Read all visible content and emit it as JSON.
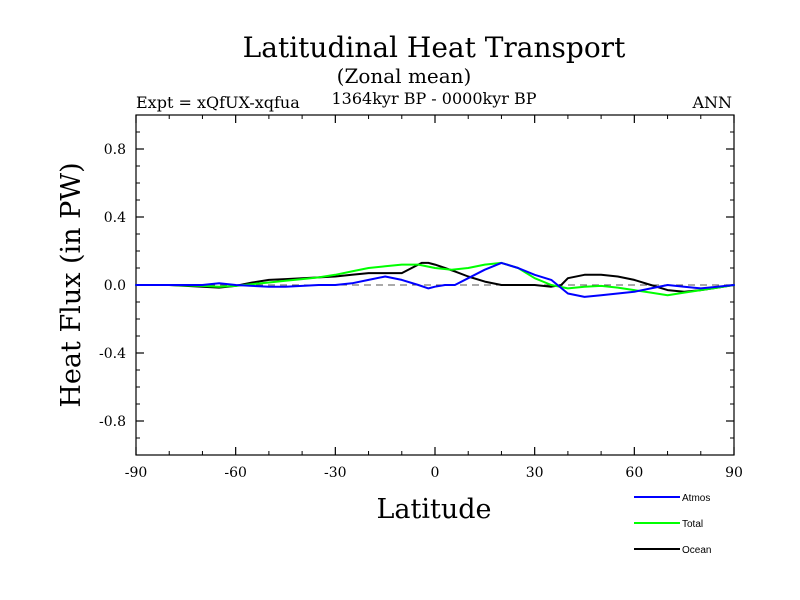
{
  "chart_data": {
    "type": "line",
    "title": "Latitudinal Heat Transport",
    "subtitle": "(Zonal mean)",
    "left_label": "Expt = xQfUX-xqfua",
    "center_label": "1364kyr BP - 0000kyr BP",
    "right_label": "ANN",
    "xlabel": "Latitude",
    "ylabel": "Heat Flux (in PW)",
    "xlim": [
      -90,
      90
    ],
    "ylim": [
      -1.0,
      1.0
    ],
    "xticks": [
      -90,
      -60,
      -30,
      0,
      30,
      60,
      90
    ],
    "xtick_labels": [
      "-90",
      "-60",
      "-30",
      "0",
      "30",
      "60",
      "90"
    ],
    "yticks": [
      -0.8,
      -0.4,
      0.0,
      0.4,
      0.8
    ],
    "ytick_labels": [
      "-0.8",
      "-0.4",
      "0.0",
      "0.4",
      "0.8"
    ],
    "zero_line": "dashed",
    "legend_position": "bottom-right, below plot",
    "series": [
      {
        "name": "Atmos",
        "color": "#0000ff",
        "x": [
          -90,
          -80,
          -70,
          -65,
          -60,
          -55,
          -50,
          -45,
          -40,
          -35,
          -30,
          -25,
          -20,
          -15,
          -10,
          -5,
          -2,
          0,
          3,
          6,
          10,
          15,
          20,
          25,
          30,
          35,
          40,
          45,
          50,
          55,
          60,
          65,
          70,
          75,
          80,
          85,
          90
        ],
        "y": [
          0.0,
          0.0,
          0.0,
          0.01,
          0.0,
          -0.005,
          -0.01,
          -0.01,
          -0.005,
          0.0,
          0.0,
          0.01,
          0.03,
          0.05,
          0.03,
          0.0,
          -0.02,
          -0.01,
          0.0,
          0.0,
          0.04,
          0.09,
          0.13,
          0.1,
          0.06,
          0.03,
          -0.05,
          -0.07,
          -0.06,
          -0.05,
          -0.04,
          -0.02,
          0.0,
          -0.01,
          -0.02,
          -0.01,
          0.0
        ]
      },
      {
        "name": "Total",
        "color": "#00ff00",
        "x": [
          -90,
          -80,
          -70,
          -65,
          -60,
          -55,
          -50,
          -45,
          -40,
          -35,
          -30,
          -25,
          -20,
          -15,
          -10,
          -5,
          0,
          5,
          10,
          15,
          20,
          25,
          30,
          35,
          40,
          45,
          50,
          55,
          60,
          65,
          70,
          75,
          80,
          85,
          90
        ],
        "y": [
          0.0,
          0.0,
          -0.005,
          -0.01,
          -0.005,
          0.005,
          0.015,
          0.025,
          0.035,
          0.045,
          0.06,
          0.08,
          0.1,
          0.11,
          0.12,
          0.12,
          0.1,
          0.09,
          0.1,
          0.12,
          0.13,
          0.1,
          0.04,
          0.0,
          -0.02,
          -0.01,
          -0.005,
          -0.015,
          -0.03,
          -0.045,
          -0.06,
          -0.045,
          -0.03,
          -0.015,
          0.0
        ]
      },
      {
        "name": "Ocean",
        "color": "#000000",
        "x": [
          -90,
          -80,
          -70,
          -65,
          -60,
          -55,
          -50,
          -45,
          -40,
          -35,
          -30,
          -25,
          -20,
          -15,
          -10,
          -7,
          -4,
          -2,
          0,
          3,
          6,
          10,
          15,
          20,
          25,
          30,
          35,
          38,
          40,
          45,
          50,
          55,
          60,
          65,
          70,
          75,
          80,
          85,
          90
        ],
        "y": [
          0.0,
          0.0,
          -0.01,
          -0.015,
          -0.005,
          0.015,
          0.03,
          0.035,
          0.04,
          0.045,
          0.05,
          0.06,
          0.07,
          0.07,
          0.07,
          0.1,
          0.13,
          0.13,
          0.12,
          0.1,
          0.08,
          0.05,
          0.02,
          0.0,
          0.0,
          0.0,
          -0.01,
          0.0,
          0.04,
          0.06,
          0.06,
          0.05,
          0.03,
          0.0,
          -0.03,
          -0.04,
          -0.03,
          -0.015,
          0.0
        ]
      }
    ]
  }
}
